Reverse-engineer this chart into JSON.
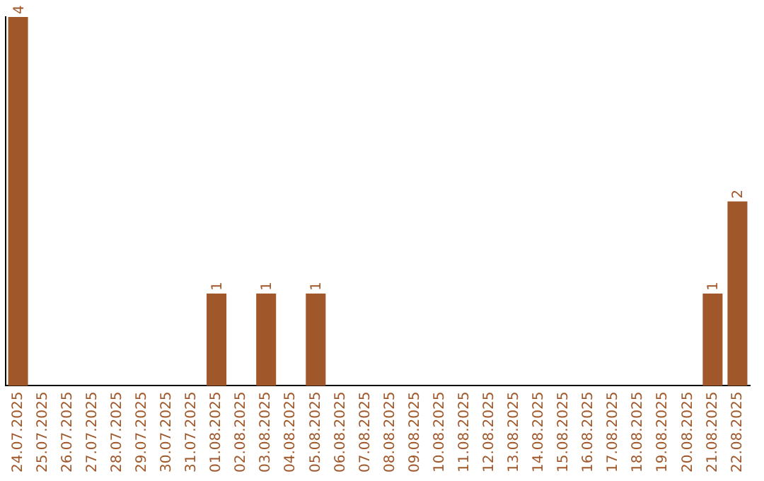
{
  "chart_data": {
    "type": "bar",
    "categories": [
      "24.07.2025",
      "25.07.2025",
      "26.07.2025",
      "27.07.2025",
      "28.07.2025",
      "29.07.2025",
      "30.07.2025",
      "31.07.2025",
      "01.08.2025",
      "02.08.2025",
      "03.08.2025",
      "04.08.2025",
      "05.08.2025",
      "06.08.2025",
      "07.08.2025",
      "08.08.2025",
      "09.08.2025",
      "10.08.2025",
      "11.08.2025",
      "12.08.2025",
      "13.08.2025",
      "14.08.2025",
      "15.08.2025",
      "16.08.2025",
      "17.08.2025",
      "18.08.2025",
      "19.08.2025",
      "20.08.2025",
      "21.08.2025",
      "22.08.2025"
    ],
    "values": [
      4,
      0,
      0,
      0,
      0,
      0,
      0,
      0,
      1,
      0,
      1,
      0,
      1,
      0,
      0,
      0,
      0,
      0,
      0,
      0,
      0,
      0,
      0,
      0,
      0,
      0,
      0,
      0,
      1,
      2
    ],
    "value_labels": [
      "4",
      null,
      null,
      null,
      null,
      null,
      null,
      null,
      "1",
      null,
      "1",
      null,
      "1",
      null,
      null,
      null,
      null,
      null,
      null,
      null,
      null,
      null,
      null,
      null,
      null,
      null,
      null,
      null,
      "1",
      "2"
    ],
    "color": "#a0582b",
    "ylim": [
      0,
      4
    ],
    "tick_labels": "x",
    "grid": false,
    "legend": false
  }
}
